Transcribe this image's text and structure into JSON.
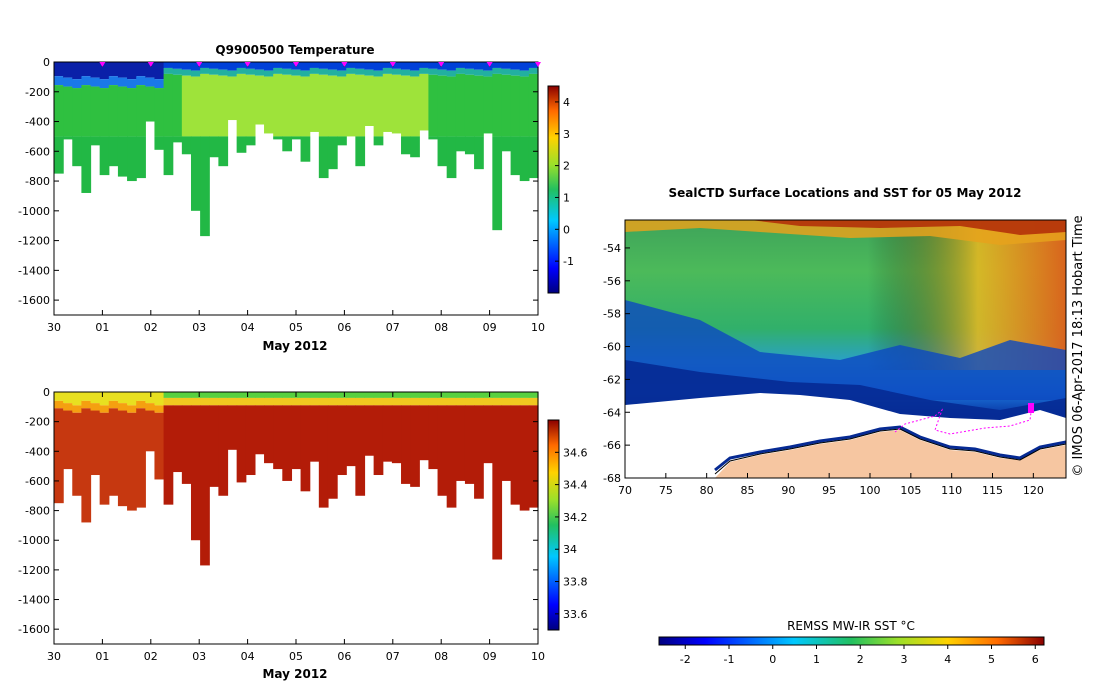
{
  "chart_data": [
    {
      "type": "heatmap",
      "id": "temperature",
      "title": "Q9900500  Temperature",
      "xlabel": "May 2012",
      "xtick_labels": [
        "30",
        "01",
        "02",
        "03",
        "04",
        "05",
        "06",
        "07",
        "08",
        "09",
        "10"
      ],
      "xlim": [
        0,
        10
      ],
      "ylim": [
        -1700,
        0
      ],
      "yticks": [
        0,
        -200,
        -400,
        -600,
        -800,
        -1000,
        -1200,
        -1400,
        -1600
      ],
      "colorbar": {
        "range": [
          -2,
          4.5
        ],
        "ticks": [
          -1,
          0,
          1,
          2,
          3,
          4
        ]
      },
      "surface_marker_days": [
        1,
        2,
        3,
        4,
        5,
        6,
        7,
        8,
        9,
        10
      ],
      "profile_depths_m": [
        750,
        520,
        700,
        880,
        560,
        760,
        700,
        770,
        800,
        780,
        400,
        590,
        760,
        540,
        620,
        1000,
        1170,
        640,
        700,
        390,
        610,
        560,
        420,
        480,
        520,
        600,
        520,
        670,
        470,
        780,
        720,
        560,
        500,
        700,
        430,
        560,
        470,
        480,
        620,
        640,
        460,
        520,
        700,
        780,
        600,
        620,
        720,
        480,
        1130,
        600,
        760,
        800,
        780
      ]
    },
    {
      "type": "heatmap",
      "id": "salinity",
      "title": "",
      "xlabel": "May 2012",
      "xtick_labels": [
        "30",
        "01",
        "02",
        "03",
        "04",
        "05",
        "06",
        "07",
        "08",
        "09",
        "10"
      ],
      "xlim": [
        0,
        10
      ],
      "ylim": [
        -1700,
        0
      ],
      "yticks": [
        0,
        -200,
        -400,
        -600,
        -800,
        -1000,
        -1200,
        -1400,
        -1600
      ],
      "colorbar": {
        "range": [
          33.5,
          34.8
        ],
        "ticks": [
          33.6,
          33.8,
          34,
          34.2,
          34.4,
          34.6
        ]
      }
    },
    {
      "type": "heatmap",
      "id": "sst-map",
      "title": "SealCTD Surface Locations and SST for 05 May 2012",
      "xtick_labels": [
        "70",
        "75",
        "80",
        "85",
        "90",
        "95",
        "100",
        "105",
        "110",
        "115",
        "120"
      ],
      "xlim": [
        70,
        124
      ],
      "ylim": [
        -68,
        -52.3
      ],
      "yticks": [
        -54,
        -56,
        -58,
        -60,
        -62,
        -64,
        -66,
        -68
      ],
      "colorbar": {
        "label": "REMSS MW-IR SST °C",
        "range": [
          -2.6,
          6.2
        ],
        "ticks": [
          -2,
          -1,
          0,
          1,
          2,
          3,
          4,
          5,
          6
        ]
      },
      "credit": "© IMOS 06-Apr-2017 18:13 Hobart Time"
    }
  ],
  "colors": {
    "axis": "#000000",
    "land": "#f6c6a1",
    "track": "#ff00ff",
    "coast": "#000000"
  }
}
